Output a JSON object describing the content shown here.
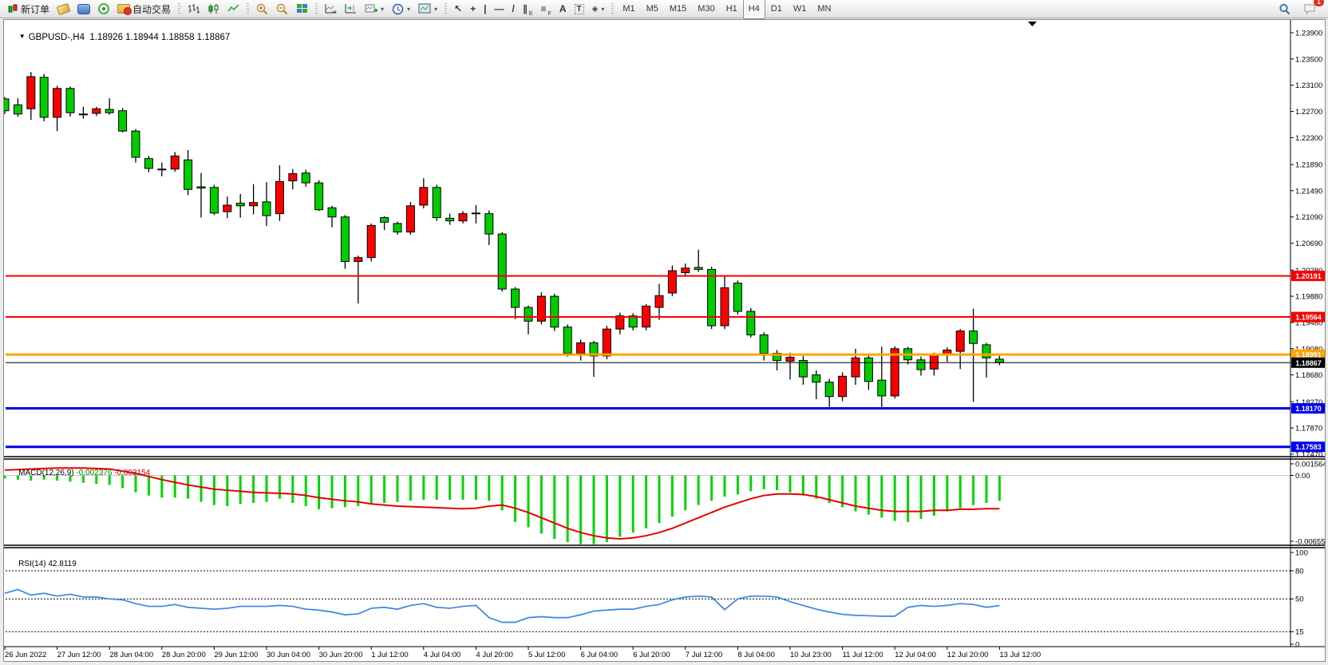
{
  "toolbar": {
    "new_order_label": "新订单",
    "auto_trading_label": "自动交易",
    "timeframes": [
      "M1",
      "M5",
      "M15",
      "M30",
      "H1",
      "H4",
      "D1",
      "W1",
      "MN"
    ],
    "active_timeframe": "H4",
    "notification_count": "1",
    "tool_glyphs": {
      "cursor": "↖",
      "crosshair": "+",
      "vline": "|",
      "hline": "—",
      "trendline": "/",
      "channel": "∥",
      "channel_sub": "E",
      "fibonacci": "≡",
      "fibonacci_sub": "F",
      "text": "A",
      "text_label": "T",
      "arrows": "◈",
      "dropdown": "▾"
    }
  },
  "chart": {
    "dropdown_glyph": "▼",
    "symbol": "GBPUSD-,H4",
    "quotes": "1.18926 1.18944 1.18858 1.18867"
  },
  "indicators": {
    "macd_name": "MACD(12,26,9)",
    "macd_value": "-0.002376",
    "macd_signal_value": "-0.003154",
    "rsi_name": "RSI(14)",
    "rsi_value": "42.8119"
  },
  "chart_data": {
    "type": "candlestick",
    "symbol": "GBPUSD-",
    "timeframe": "H4",
    "current_ohlc": [
      1.18926,
      1.18944,
      1.18858,
      1.18867
    ],
    "price_max": 1.239,
    "price_min": 1.1747,
    "price_axis_labels": [
      "1.23900",
      "1.23500",
      "1.23100",
      "1.22700",
      "1.22300",
      "1.21890",
      "1.21490",
      "1.21090",
      "1.20690",
      "1.20280",
      "1.19880",
      "1.19480",
      "1.19080",
      "1.18680",
      "1.18270",
      "1.17870",
      "1.17470"
    ],
    "time_labels": [
      "26 Jun 2022",
      "27 Jun 12:00",
      "28 Jun 04:00",
      "28 Jun 20:00",
      "29 Jun 12:00",
      "30 Jun 04:00",
      "30 Jun 20:00",
      "1 Jul 12:00",
      "4 Jul 04:00",
      "4 Jul 20:00",
      "5 Jul 12:00",
      "6 Jul 04:00",
      "6 Jul 20:00",
      "7 Jul 12:00",
      "8 Jul 04:00",
      "10 Jul 23:00",
      "11 Jul 12:00",
      "12 Jul 04:00",
      "12 Jul 20:00",
      "13 Jul 12:00"
    ],
    "label_every_n_bars": 4,
    "up_color": "#fc0000",
    "down_color": "#00cc00",
    "outline_color": "#000000",
    "candles": [
      [
        1.2289,
        1.2292,
        1.2266,
        1.2271
      ],
      [
        1.228,
        1.229,
        1.2262,
        1.2266
      ],
      [
        1.2274,
        1.233,
        1.2257,
        1.2323
      ],
      [
        1.2322,
        1.2327,
        1.2255,
        1.2261
      ],
      [
        1.2261,
        1.2309,
        1.224,
        1.2305
      ],
      [
        1.2305,
        1.2308,
        1.2262,
        1.2268
      ],
      [
        1.2265,
        1.2277,
        1.2259,
        1.2266
      ],
      [
        1.2267,
        1.2277,
        1.2263,
        1.2274
      ],
      [
        1.2273,
        1.229,
        1.2265,
        1.2268
      ],
      [
        1.2271,
        1.2275,
        1.2238,
        1.224
      ],
      [
        1.224,
        1.2243,
        1.2192,
        1.22
      ],
      [
        1.2198,
        1.2202,
        1.2177,
        1.2183
      ],
      [
        1.2181,
        1.2192,
        1.2171,
        1.2182
      ],
      [
        1.2182,
        1.2208,
        1.2178,
        1.2202
      ],
      [
        1.2196,
        1.2211,
        1.2142,
        1.2151
      ],
      [
        1.2155,
        1.2176,
        1.2108,
        1.2153
      ],
      [
        1.2154,
        1.2158,
        1.2112,
        1.2115
      ],
      [
        1.2117,
        1.214,
        1.2107,
        1.2127
      ],
      [
        1.213,
        1.2144,
        1.2108,
        1.2126
      ],
      [
        1.2126,
        1.2159,
        1.2113,
        1.2131
      ],
      [
        1.2132,
        1.2162,
        1.2095,
        1.2111
      ],
      [
        1.2114,
        1.2188,
        1.2103,
        1.2163
      ],
      [
        1.2164,
        1.2182,
        1.2151,
        1.2175
      ],
      [
        1.2176,
        1.2181,
        1.2155,
        1.2161
      ],
      [
        1.2161,
        1.2165,
        1.2118,
        1.212
      ],
      [
        1.2123,
        1.2126,
        1.2093,
        1.2109
      ],
      [
        1.2109,
        1.2112,
        1.203,
        1.2041
      ],
      [
        1.2041,
        1.205,
        1.1977,
        1.2047
      ],
      [
        1.2047,
        1.2099,
        1.2041,
        1.2096
      ],
      [
        1.2108,
        1.211,
        1.2089,
        1.2101
      ],
      [
        1.2099,
        1.2102,
        1.2082,
        1.2086
      ],
      [
        1.2086,
        1.2132,
        1.2082,
        1.2126
      ],
      [
        1.2127,
        1.2168,
        1.2122,
        1.2154
      ],
      [
        1.2154,
        1.2158,
        1.2103,
        1.2108
      ],
      [
        1.2107,
        1.2114,
        1.2097,
        1.2103
      ],
      [
        1.2103,
        1.2118,
        1.2099,
        1.2114
      ],
      [
        1.2114,
        1.2127,
        1.2099,
        1.2115
      ],
      [
        1.2114,
        1.2119,
        1.2066,
        1.2083
      ],
      [
        1.2083,
        1.2086,
        1.1995,
        1.1999
      ],
      [
        1.1999,
        1.2002,
        1.1953,
        1.1971
      ],
      [
        1.1971,
        1.1974,
        1.193,
        1.195
      ],
      [
        1.195,
        1.1994,
        1.1945,
        1.1988
      ],
      [
        1.1988,
        1.1992,
        1.1935,
        1.1941
      ],
      [
        1.1941,
        1.1945,
        1.1896,
        1.1901
      ],
      [
        1.1901,
        1.1922,
        1.189,
        1.1917
      ],
      [
        1.1917,
        1.192,
        1.1865,
        1.1897
      ],
      [
        1.1897,
        1.1943,
        1.1892,
        1.1938
      ],
      [
        1.1938,
        1.1963,
        1.193,
        1.1958
      ],
      [
        1.1958,
        1.1962,
        1.1936,
        1.1941
      ],
      [
        1.1941,
        1.1976,
        1.1936,
        1.1973
      ],
      [
        1.1971,
        1.2007,
        1.1952,
        1.1989
      ],
      [
        1.1993,
        1.2035,
        1.1988,
        1.2027
      ],
      [
        1.2024,
        1.2038,
        1.2018,
        1.2031
      ],
      [
        1.2032,
        1.2059,
        1.2025,
        1.2029
      ],
      [
        1.2029,
        1.2033,
        1.1938,
        1.1943
      ],
      [
        1.1943,
        1.2018,
        1.1938,
        1.2001
      ],
      [
        1.2008,
        1.2012,
        1.196,
        1.1965
      ],
      [
        1.1965,
        1.197,
        1.1925,
        1.1929
      ],
      [
        1.1929,
        1.1933,
        1.189,
        1.1901
      ],
      [
        1.1901,
        1.1906,
        1.1875,
        1.189
      ],
      [
        1.1889,
        1.1902,
        1.1861,
        1.1895
      ],
      [
        1.189,
        1.1897,
        1.1853,
        1.1865
      ],
      [
        1.1868,
        1.1875,
        1.1831,
        1.1857
      ],
      [
        1.1857,
        1.1862,
        1.1817,
        1.1835
      ],
      [
        1.1835,
        1.1872,
        1.1828,
        1.1866
      ],
      [
        1.1865,
        1.1908,
        1.1853,
        1.1894
      ],
      [
        1.1894,
        1.1899,
        1.1845,
        1.1858
      ],
      [
        1.186,
        1.1911,
        1.1816,
        1.1836
      ],
      [
        1.1836,
        1.1912,
        1.1832,
        1.1908
      ],
      [
        1.1908,
        1.1911,
        1.1884,
        1.1891
      ],
      [
        1.1891,
        1.1896,
        1.1867,
        1.1876
      ],
      [
        1.1877,
        1.1902,
        1.1867,
        1.1898
      ],
      [
        1.1898,
        1.191,
        1.1888,
        1.1906
      ],
      [
        1.1904,
        1.1938,
        1.1877,
        1.1935
      ],
      [
        1.1935,
        1.1969,
        1.1827,
        1.1916
      ],
      [
        1.1914,
        1.1917,
        1.1864,
        1.1894
      ],
      [
        1.1892,
        1.1897,
        1.1883,
        1.18867
      ]
    ],
    "hlines": [
      {
        "price": 1.20191,
        "label": "1.20191",
        "color": "#f80000",
        "width": 2
      },
      {
        "price": 1.19564,
        "label": "1.19564",
        "color": "#f80000",
        "width": 2
      },
      {
        "price": 1.18991,
        "label": "1.18991",
        "color": "#ffa500",
        "width": 3
      },
      {
        "price": 1.1817,
        "label": "1.18170",
        "color": "#0000f0",
        "width": 3
      },
      {
        "price": 1.17583,
        "label": "1.17583",
        "color": "#0000f0",
        "width": 3
      }
    ],
    "bid_line": {
      "price": 1.18867,
      "label": "1.18867",
      "color": "#000000",
      "width": 1
    },
    "macd": {
      "name": "MACD(12,26,9)",
      "value": -0.002376,
      "signal_value": -0.003154,
      "hist_color": "#00d400",
      "signal_color": "#e80000",
      "scale_labels": [
        "0.001564",
        "0.00",
        "-0.006555"
      ],
      "scale_max": 0.001564,
      "scale_min": -0.006555,
      "hist": [
        -0.0003,
        -0.0004,
        -0.0005,
        -0.0004,
        -0.0005,
        -0.0006,
        -0.0007,
        -0.0008,
        -0.0009,
        -0.0012,
        -0.0016,
        -0.0019,
        -0.0021,
        -0.0021,
        -0.0022,
        -0.0025,
        -0.0028,
        -0.0029,
        -0.0027,
        -0.0026,
        -0.0025,
        -0.0022,
        -0.0026,
        -0.0029,
        -0.0032,
        -0.0031,
        -0.003,
        -0.0029,
        -0.0027,
        -0.0026,
        -0.0025,
        -0.0024,
        -0.0023,
        -0.0023,
        -0.0023,
        -0.0023,
        -0.0023,
        -0.0024,
        -0.0033,
        -0.0044,
        -0.0049,
        -0.0055,
        -0.006,
        -0.0063,
        -0.0065,
        -0.0065,
        -0.0063,
        -0.0058,
        -0.0054,
        -0.005,
        -0.0045,
        -0.0039,
        -0.0033,
        -0.0028,
        -0.0024,
        -0.002,
        -0.0018,
        -0.0015,
        -0.0013,
        -0.0014,
        -0.0016,
        -0.0019,
        -0.0022,
        -0.0026,
        -0.003,
        -0.0034,
        -0.0037,
        -0.004,
        -0.0043,
        -0.0044,
        -0.0041,
        -0.0038,
        -0.0034,
        -0.0031,
        -0.0028,
        -0.0026,
        -0.0024
      ],
      "signal": [
        0.0005,
        0.00055,
        0.0006,
        0.00065,
        0.0007,
        0.0007,
        0.0007,
        0.00065,
        0.0006,
        0.0004,
        0.0002,
        -0.0001,
        -0.0004,
        -0.00065,
        -0.0009,
        -0.0011,
        -0.0013,
        -0.0014,
        -0.0015,
        -0.0016,
        -0.00165,
        -0.0017,
        -0.00175,
        -0.0019,
        -0.0021,
        -0.00225,
        -0.0024,
        -0.0025,
        -0.0027,
        -0.0028,
        -0.0029,
        -0.00295,
        -0.003,
        -0.00305,
        -0.0031,
        -0.00315,
        -0.0031,
        -0.0029,
        -0.0028,
        -0.0031,
        -0.0035,
        -0.004,
        -0.0045,
        -0.005,
        -0.0054,
        -0.0057,
        -0.0059,
        -0.006,
        -0.0059,
        -0.0057,
        -0.0054,
        -0.005,
        -0.0045,
        -0.004,
        -0.0035,
        -0.003,
        -0.0026,
        -0.0022,
        -0.0019,
        -0.00175,
        -0.00175,
        -0.0018,
        -0.002,
        -0.0023,
        -0.0026,
        -0.0029,
        -0.0031,
        -0.0033,
        -0.0034,
        -0.0034,
        -0.0034,
        -0.0033,
        -0.0033,
        -0.0032,
        -0.0032,
        -0.00315,
        -0.00315
      ]
    },
    "rsi": {
      "name": "RSI(14)",
      "value": 42.8119,
      "color": "#3b87dd",
      "levels": [
        80,
        50,
        15
      ],
      "scale_labels": [
        "100",
        "80",
        "50",
        "15",
        "0"
      ],
      "scale_values": [
        100,
        80,
        50,
        15,
        0
      ],
      "values": [
        56,
        60,
        54,
        56,
        53,
        55,
        52,
        52,
        50,
        49,
        45,
        42,
        42,
        44,
        41,
        40,
        39,
        40,
        42,
        42,
        42,
        43,
        42,
        39,
        38,
        36,
        33,
        34,
        40,
        41,
        39,
        43,
        45,
        41,
        40,
        42,
        43,
        30,
        25,
        25,
        30,
        31,
        30,
        30,
        33,
        37,
        38,
        39,
        39,
        42,
        44,
        49,
        52,
        53,
        52,
        38.5,
        50,
        53,
        53,
        52,
        47,
        43,
        39,
        36,
        33.5,
        32.5,
        32,
        31.5,
        31.5,
        41,
        43,
        42,
        43,
        45,
        44,
        41,
        42.8
      ]
    }
  }
}
